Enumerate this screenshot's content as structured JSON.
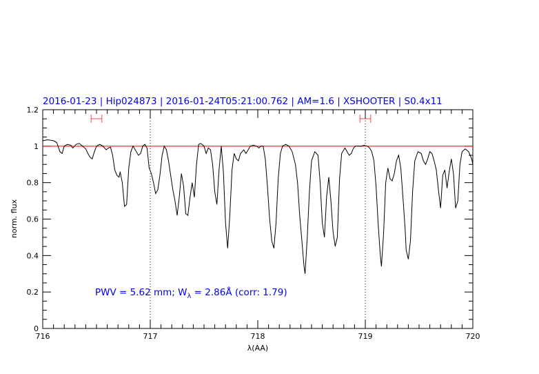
{
  "chart_data": {
    "type": "line",
    "title": "2016-01-23 | Hip024873 | 2016-01-24T05:21:00.762 | AM=1.6 | XSHOOTER | S0.4x11",
    "xlabel": "λ(AA)",
    "ylabel": "norm. flux",
    "xlim": [
      716,
      720
    ],
    "ylim": [
      0,
      1.2
    ],
    "x_ticks": [
      "716",
      "717",
      "718",
      "719",
      "720"
    ],
    "y_ticks": [
      "0",
      "0.2",
      "0.4",
      "0.6",
      "0.8",
      "1",
      "1.2"
    ],
    "grid": false,
    "colors": {
      "spectrum": "#000000",
      "continuum": "#ff0000",
      "markers": "#ff4444",
      "text": "#0000ee"
    },
    "continuum_level": 1.0,
    "vertical_lines": [
      717.0,
      719.0
    ],
    "continuum_windows": [
      [
        716.45,
        716.55
      ],
      [
        718.95,
        719.05
      ]
    ],
    "annotation": {
      "pwv": "PWV = 5.62 mm; W",
      "sub": "λ",
      "rest": " = 2.86Å (corr: 1.79)"
    },
    "series": [
      {
        "values": [
          [
            716.0,
            1.03
          ],
          [
            716.05,
            1.035
          ],
          [
            716.1,
            1.03
          ],
          [
            716.13,
            1.02
          ],
          [
            716.16,
            0.97
          ],
          [
            716.18,
            0.96
          ],
          [
            716.2,
            1.0
          ],
          [
            716.23,
            1.01
          ],
          [
            716.26,
            1.005
          ],
          [
            716.28,
            0.99
          ],
          [
            716.31,
            1.01
          ],
          [
            716.34,
            1.015
          ],
          [
            716.37,
            1.0
          ],
          [
            716.4,
            0.985
          ],
          [
            716.42,
            0.96
          ],
          [
            716.44,
            0.94
          ],
          [
            716.46,
            0.93
          ],
          [
            716.48,
            0.97
          ],
          [
            716.5,
            1.0
          ],
          [
            716.53,
            1.01
          ],
          [
            716.56,
            1.0
          ],
          [
            716.59,
            0.98
          ],
          [
            716.61,
            0.99
          ],
          [
            716.63,
            0.995
          ],
          [
            716.65,
            0.95
          ],
          [
            716.67,
            0.87
          ],
          [
            716.69,
            0.84
          ],
          [
            716.71,
            0.83
          ],
          [
            716.72,
            0.86
          ],
          [
            716.74,
            0.8
          ],
          [
            716.76,
            0.67
          ],
          [
            716.78,
            0.68
          ],
          [
            716.8,
            0.88
          ],
          [
            716.82,
            0.97
          ],
          [
            716.84,
            1.0
          ],
          [
            716.86,
            0.98
          ],
          [
            716.89,
            0.95
          ],
          [
            716.91,
            0.96
          ],
          [
            716.93,
            1.0
          ],
          [
            716.95,
            1.01
          ],
          [
            716.97,
            0.99
          ],
          [
            716.99,
            0.88
          ],
          [
            717.01,
            0.85
          ],
          [
            717.03,
            0.8
          ],
          [
            717.05,
            0.74
          ],
          [
            717.07,
            0.76
          ],
          [
            717.09,
            0.84
          ],
          [
            717.11,
            0.95
          ],
          [
            717.13,
            1.0
          ],
          [
            717.15,
            0.98
          ],
          [
            717.17,
            0.92
          ],
          [
            717.19,
            0.84
          ],
          [
            717.21,
            0.76
          ],
          [
            717.23,
            0.7
          ],
          [
            717.25,
            0.62
          ],
          [
            717.27,
            0.72
          ],
          [
            717.29,
            0.85
          ],
          [
            717.31,
            0.78
          ],
          [
            717.33,
            0.63
          ],
          [
            717.35,
            0.62
          ],
          [
            717.37,
            0.72
          ],
          [
            717.39,
            0.8
          ],
          [
            717.41,
            0.72
          ],
          [
            717.43,
            0.9
          ],
          [
            717.45,
            1.01
          ],
          [
            717.47,
            1.015
          ],
          [
            717.5,
            1.0
          ],
          [
            717.52,
            0.96
          ],
          [
            717.54,
            0.99
          ],
          [
            717.56,
            0.98
          ],
          [
            717.58,
            0.9
          ],
          [
            717.6,
            0.75
          ],
          [
            717.62,
            0.68
          ],
          [
            717.64,
            0.87
          ],
          [
            717.66,
            1.0
          ],
          [
            717.68,
            0.86
          ],
          [
            717.7,
            0.58
          ],
          [
            717.72,
            0.44
          ],
          [
            717.74,
            0.62
          ],
          [
            717.76,
            0.87
          ],
          [
            717.78,
            0.96
          ],
          [
            717.8,
            0.93
          ],
          [
            717.82,
            0.92
          ],
          [
            717.84,
            0.96
          ],
          [
            717.87,
            0.98
          ],
          [
            717.89,
            0.96
          ],
          [
            717.91,
            0.98
          ],
          [
            717.93,
            1.0
          ],
          [
            717.96,
            1.005
          ],
          [
            717.99,
            1.0
          ],
          [
            718.01,
            0.99
          ],
          [
            718.03,
            1.0
          ],
          [
            718.05,
            1.0
          ],
          [
            718.07,
            0.93
          ],
          [
            718.09,
            0.78
          ],
          [
            718.11,
            0.6
          ],
          [
            718.13,
            0.48
          ],
          [
            718.15,
            0.44
          ],
          [
            718.17,
            0.58
          ],
          [
            718.19,
            0.82
          ],
          [
            718.21,
            0.96
          ],
          [
            718.23,
            1.0
          ],
          [
            718.26,
            1.01
          ],
          [
            718.29,
            1.0
          ],
          [
            718.32,
            0.97
          ],
          [
            718.35,
            0.9
          ],
          [
            718.37,
            0.8
          ],
          [
            718.39,
            0.62
          ],
          [
            718.41,
            0.48
          ],
          [
            718.43,
            0.34
          ],
          [
            718.44,
            0.3
          ],
          [
            718.46,
            0.5
          ],
          [
            718.48,
            0.75
          ],
          [
            718.5,
            0.92
          ],
          [
            718.53,
            0.97
          ],
          [
            718.56,
            0.95
          ],
          [
            718.58,
            0.8
          ],
          [
            718.6,
            0.58
          ],
          [
            718.62,
            0.5
          ],
          [
            718.64,
            0.72
          ],
          [
            718.66,
            0.83
          ],
          [
            718.68,
            0.7
          ],
          [
            718.7,
            0.53
          ],
          [
            718.72,
            0.45
          ],
          [
            718.74,
            0.5
          ],
          [
            718.76,
            0.82
          ],
          [
            718.78,
            0.96
          ],
          [
            718.81,
            0.99
          ],
          [
            718.83,
            0.97
          ],
          [
            718.85,
            0.95
          ],
          [
            718.87,
            0.96
          ],
          [
            718.89,
            0.99
          ],
          [
            718.91,
            1.0
          ],
          [
            718.93,
            1.0
          ],
          [
            718.96,
            1.0
          ],
          [
            718.99,
            1.005
          ],
          [
            719.02,
            1.0
          ],
          [
            719.04,
            0.99
          ],
          [
            719.06,
            0.97
          ],
          [
            719.08,
            0.92
          ],
          [
            719.1,
            0.78
          ],
          [
            719.12,
            0.57
          ],
          [
            719.14,
            0.4
          ],
          [
            719.15,
            0.34
          ],
          [
            719.17,
            0.52
          ],
          [
            719.19,
            0.8
          ],
          [
            719.21,
            0.88
          ],
          [
            719.23,
            0.82
          ],
          [
            719.25,
            0.81
          ],
          [
            719.27,
            0.85
          ],
          [
            719.29,
            0.92
          ],
          [
            719.31,
            0.95
          ],
          [
            719.33,
            0.88
          ],
          [
            719.35,
            0.72
          ],
          [
            719.37,
            0.55
          ],
          [
            719.38,
            0.43
          ],
          [
            719.4,
            0.38
          ],
          [
            719.42,
            0.48
          ],
          [
            719.44,
            0.75
          ],
          [
            719.46,
            0.92
          ],
          [
            719.49,
            0.97
          ],
          [
            719.52,
            0.96
          ],
          [
            719.54,
            0.92
          ],
          [
            719.56,
            0.9
          ],
          [
            719.58,
            0.93
          ],
          [
            719.6,
            0.97
          ],
          [
            719.62,
            0.96
          ],
          [
            719.64,
            0.92
          ],
          [
            719.66,
            0.87
          ],
          [
            719.68,
            0.76
          ],
          [
            719.7,
            0.66
          ],
          [
            719.72,
            0.84
          ],
          [
            719.74,
            0.87
          ],
          [
            719.76,
            0.77
          ],
          [
            719.78,
            0.86
          ],
          [
            719.8,
            0.93
          ],
          [
            719.82,
            0.85
          ],
          [
            719.84,
            0.66
          ],
          [
            719.86,
            0.7
          ],
          [
            719.88,
            0.9
          ],
          [
            719.9,
            0.97
          ],
          [
            719.93,
            0.985
          ],
          [
            719.96,
            0.97
          ],
          [
            719.99,
            0.93
          ],
          [
            720.0,
            0.9
          ]
        ]
      }
    ]
  }
}
